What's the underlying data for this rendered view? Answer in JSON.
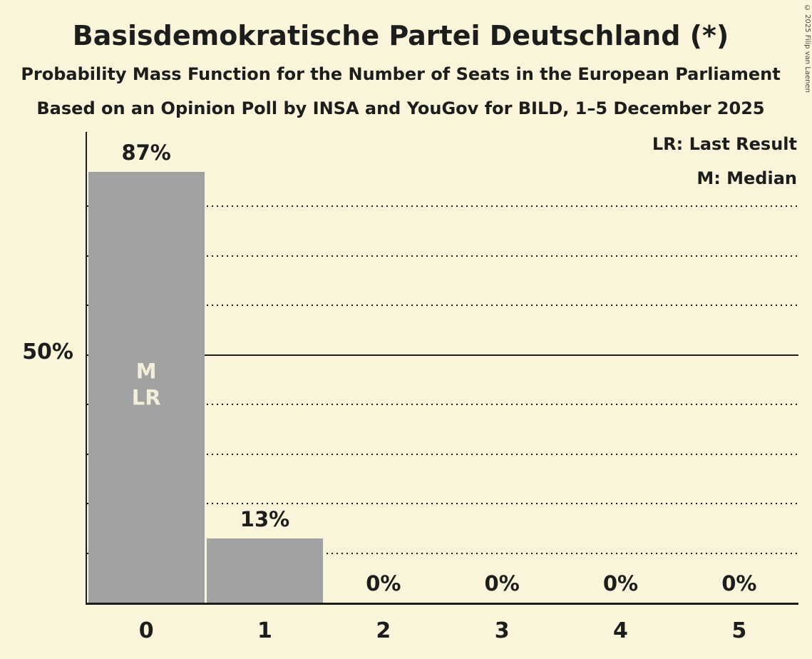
{
  "chart_data": {
    "type": "bar",
    "title": "Basisdemokratische Partei Deutschland (*)",
    "subtitle": "Probability Mass Function for the Number of Seats in the European Parliament",
    "sub_subtitle": "Based on an Opinion Poll by INSA and YouGov for BILD, 1–5 December 2025",
    "xlabel": "",
    "ylabel": "",
    "categories": [
      "0",
      "1",
      "2",
      "3",
      "4",
      "5"
    ],
    "values": [
      87,
      13,
      0,
      0,
      0,
      0
    ],
    "value_labels": [
      "87%",
      "13%",
      "0%",
      "0%",
      "0%",
      "0%"
    ],
    "bar_annotations": [
      [
        "M",
        "LR"
      ],
      [],
      [],
      [],
      [],
      []
    ],
    "y_axis": {
      "tick_label": "50%",
      "tick_value": 50,
      "ylim": [
        0,
        95
      ],
      "solid_gridline": 50,
      "dotted_gridlines": [
        10,
        20,
        30,
        40,
        60,
        70,
        80
      ]
    },
    "legend": [
      {
        "label": "LR: Last Result"
      },
      {
        "label": "M: Median"
      }
    ],
    "legend_position": "top-right",
    "grid": "horizontal dotted, solid at 50%"
  },
  "copyright": "© 2025 Filip van Laenen",
  "colors": {
    "background": "#FAF4DB",
    "bar": "#A2A2A2",
    "text": "#1D1D1B",
    "bar_annotation_text": "#F3EEDA"
  }
}
